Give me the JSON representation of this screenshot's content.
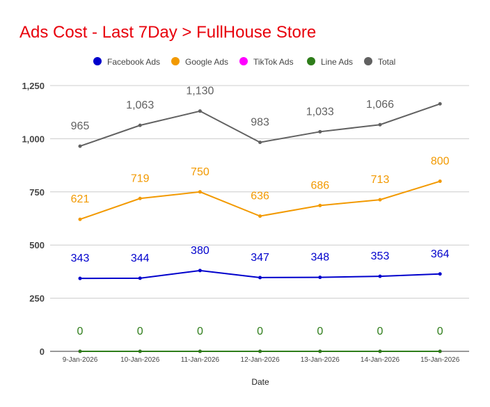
{
  "chart_data": {
    "type": "line",
    "title": "Ads Cost - Last 7Day > FullHouse Store",
    "xlabel": "Date",
    "ylabel": "",
    "ylim": [
      0,
      1250
    ],
    "yticks": [
      0,
      250,
      500,
      750,
      1000,
      1250
    ],
    "ytick_labels": [
      "0",
      "250",
      "500",
      "750",
      "1,000",
      "1,250"
    ],
    "grid": true,
    "legend_position": "top-center",
    "categories": [
      "9-Jan-2026",
      "10-Jan-2026",
      "11-Jan-2026",
      "12-Jan-2026",
      "13-Jan-2026",
      "14-Jan-2026",
      "15-Jan-2026"
    ],
    "series": [
      {
        "name": "Facebook Ads",
        "color": "#0000cc",
        "values": [
          343,
          344,
          380,
          347,
          348,
          353,
          364
        ],
        "labels": [
          "343",
          "344",
          "380",
          "347",
          "348",
          "353",
          "364"
        ]
      },
      {
        "name": "Google Ads",
        "color": "#f29900",
        "values": [
          621,
          719,
          750,
          636,
          686,
          713,
          800
        ],
        "labels": [
          "621",
          "719",
          "750",
          "636",
          "686",
          "713",
          "800"
        ]
      },
      {
        "name": "TikTok Ads",
        "color": "#ff00ff",
        "values": [
          0,
          0,
          0,
          0,
          0,
          0,
          0
        ],
        "labels": [
          "",
          "",
          "",
          "",
          "",
          "",
          ""
        ]
      },
      {
        "name": "Line Ads",
        "color": "#2e7d1a",
        "values": [
          0,
          0,
          0,
          0,
          0,
          0,
          0
        ],
        "labels": [
          "0",
          "0",
          "0",
          "0",
          "0",
          "0",
          "0"
        ]
      },
      {
        "name": "Total",
        "color": "#616161",
        "values": [
          965,
          1063,
          1130,
          983,
          1033,
          1066,
          1164
        ],
        "labels": [
          "965",
          "1,063",
          "1,130",
          "983",
          "1,033",
          "1,066",
          ""
        ]
      }
    ],
    "title_color": "#e8000b"
  }
}
